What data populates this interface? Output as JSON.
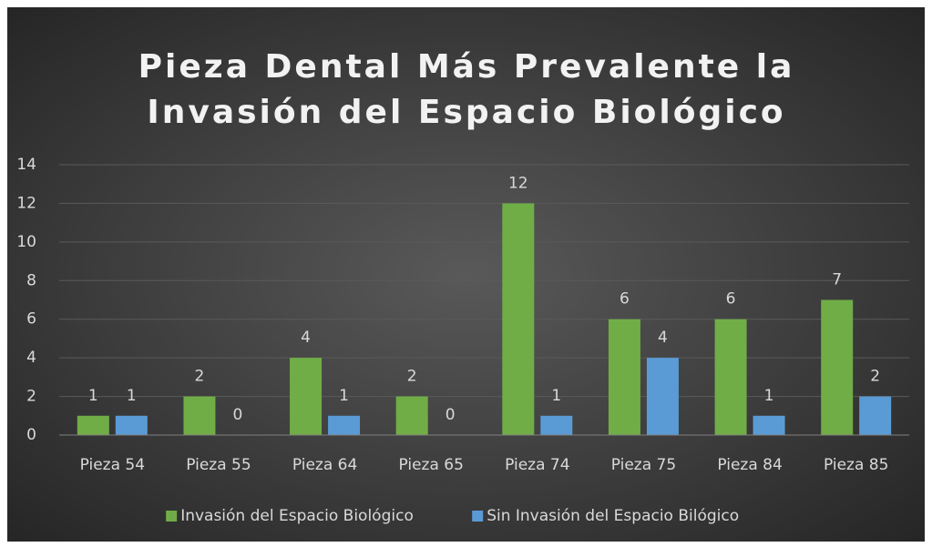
{
  "chart_data": {
    "type": "bar",
    "title": [
      "Pieza Dental Más Prevalente la",
      "Invasión del Espacio Biológico"
    ],
    "categories": [
      "Pieza 54",
      "Pieza 55",
      "Pieza 64",
      "Pieza 65",
      "Pieza 74",
      "Pieza 75",
      "Pieza 84",
      "Pieza 85"
    ],
    "series": [
      {
        "name": "Invasión del Espacio Biológico",
        "color": "#70ad47",
        "values": [
          1,
          2,
          4,
          2,
          12,
          6,
          6,
          7
        ]
      },
      {
        "name": "Sin Invasión del Espacio Bilógico",
        "color": "#5b9bd5",
        "values": [
          1,
          0,
          1,
          0,
          1,
          4,
          1,
          2
        ]
      }
    ],
    "ylim": [
      0,
      14
    ],
    "yticks": [
      0,
      2,
      4,
      6,
      8,
      10,
      12,
      14
    ],
    "grid": true,
    "legend": "bottom"
  }
}
